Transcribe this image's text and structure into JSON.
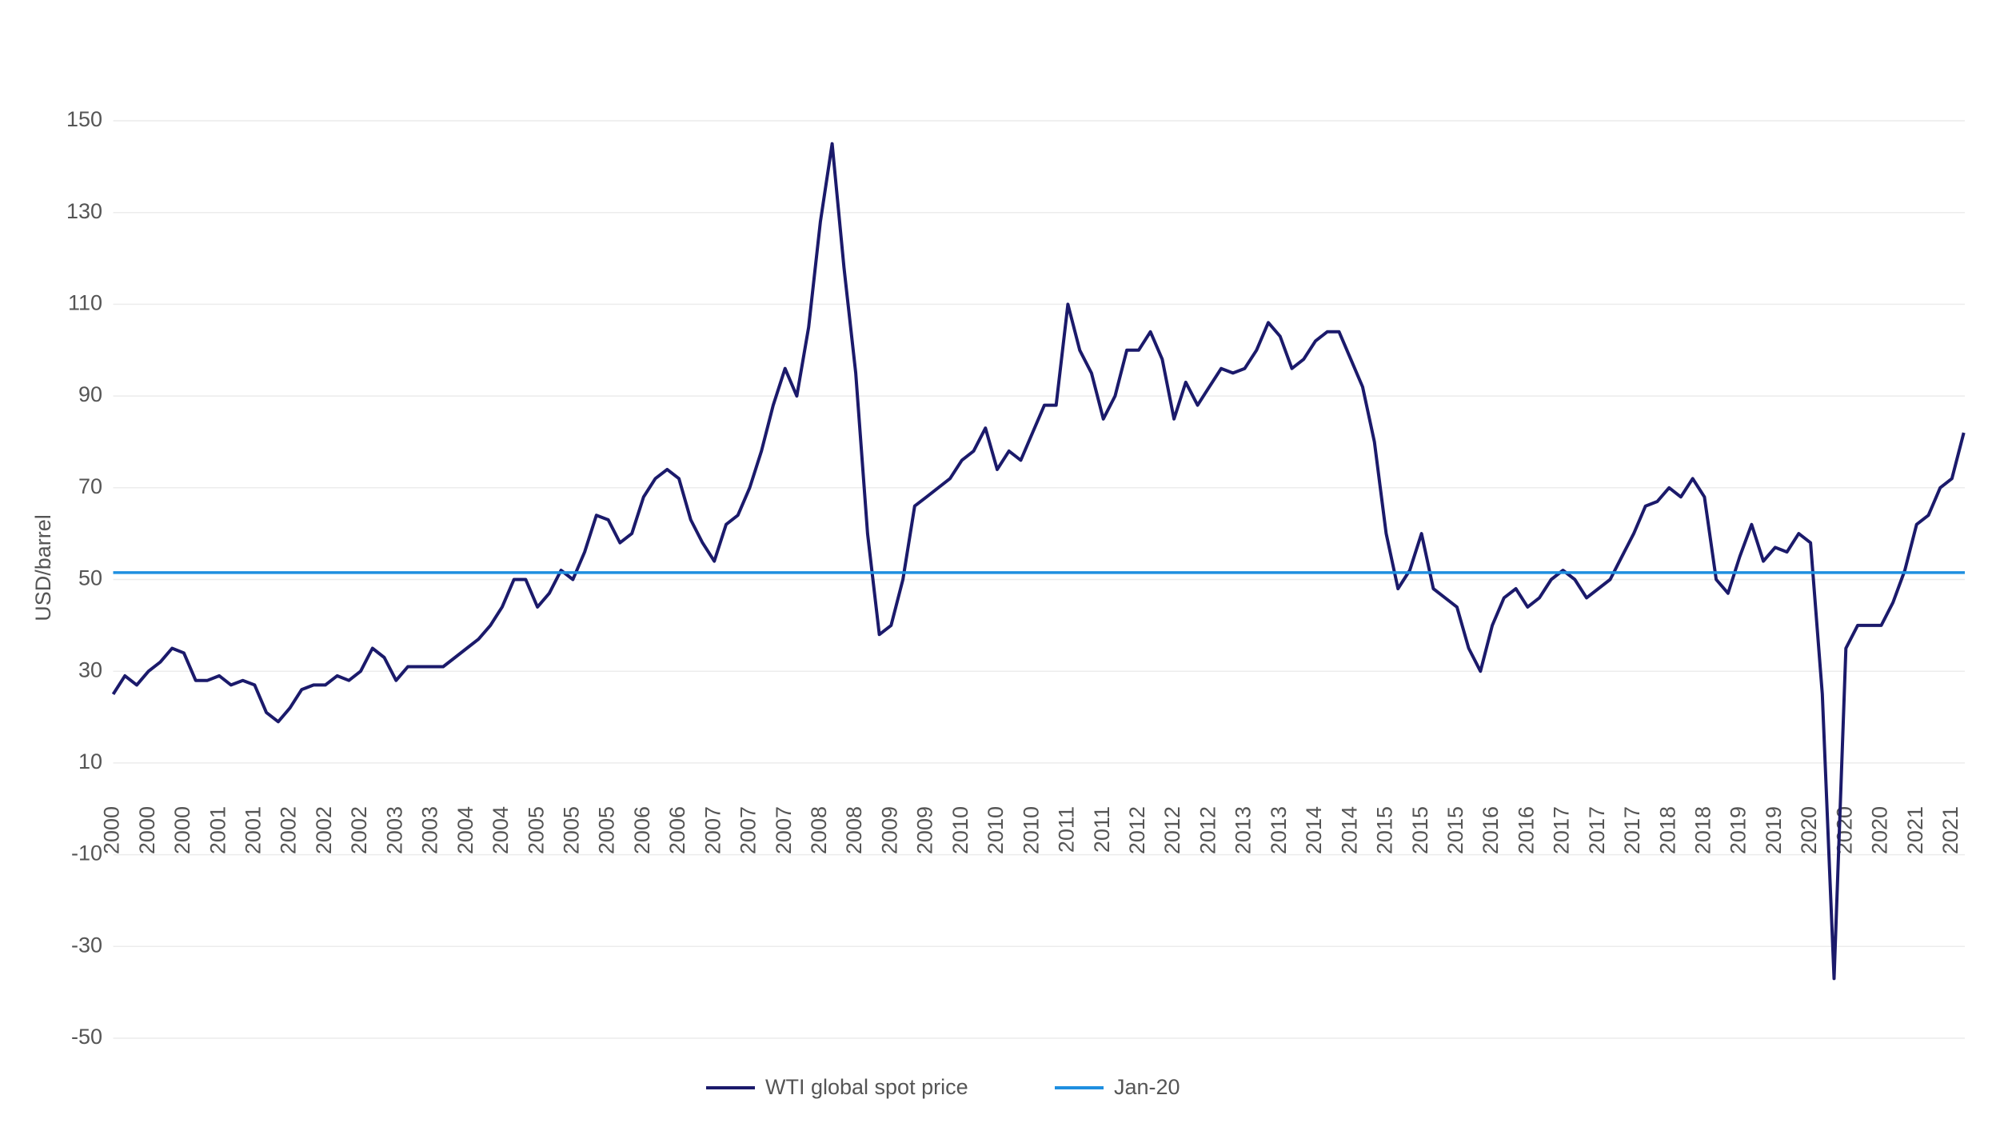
{
  "chart_data": {
    "type": "line",
    "ylabel": "USD/barrel",
    "categories": [
      "2000",
      null,
      null,
      "2000",
      null,
      null,
      "2000",
      null,
      null,
      "2001",
      null,
      null,
      "2001",
      null,
      null,
      "2002",
      null,
      null,
      "2002",
      null,
      null,
      "2002",
      null,
      null,
      "2003",
      null,
      null,
      "2003",
      null,
      null,
      "2004",
      null,
      null,
      "2004",
      null,
      null,
      "2005",
      null,
      null,
      "2005",
      null,
      null,
      "2005",
      null,
      null,
      "2006",
      null,
      null,
      "2006",
      null,
      null,
      "2007",
      null,
      null,
      "2007",
      null,
      null,
      "2007",
      null,
      null,
      "2008",
      null,
      null,
      "2008",
      null,
      null,
      "2009",
      null,
      null,
      "2009",
      null,
      null,
      "2010",
      null,
      null,
      "2010",
      null,
      null,
      "2010",
      null,
      null,
      "2011",
      null,
      null,
      "2011",
      null,
      null,
      "2012",
      null,
      null,
      "2012",
      null,
      null,
      "2012",
      null,
      null,
      "2013",
      null,
      null,
      "2013",
      null,
      null,
      "2014",
      null,
      null,
      "2014",
      null,
      null,
      "2015",
      null,
      null,
      "2015",
      null,
      null,
      "2015",
      null,
      null,
      "2016",
      null,
      null,
      "2016",
      null,
      null,
      "2017",
      null,
      null,
      "2017",
      null,
      null,
      "2017",
      null,
      null,
      "2018",
      null,
      null,
      "2018",
      null,
      null,
      "2019",
      null,
      null,
      "2019",
      null,
      null,
      "2020",
      null,
      null,
      "2020",
      null,
      null,
      "2020",
      null,
      null,
      "2021",
      null,
      null,
      "2021",
      null
    ],
    "series": [
      {
        "name": "WTI global spot price",
        "color": "#1b1a6b",
        "values": [
          25,
          29,
          27,
          30,
          32,
          35,
          34,
          28,
          28,
          29,
          27,
          28,
          27,
          21,
          19,
          22,
          26,
          27,
          27,
          29,
          28,
          30,
          35,
          33,
          28,
          31,
          31,
          31,
          31,
          33,
          35,
          37,
          40,
          44,
          50,
          50,
          44,
          47,
          52,
          50,
          56,
          64,
          63,
          58,
          60,
          68,
          72,
          74,
          72,
          63,
          58,
          54,
          62,
          64,
          70,
          78,
          88,
          96,
          90,
          105,
          128,
          145,
          118,
          95,
          60,
          38,
          40,
          50,
          66,
          68,
          70,
          72,
          76,
          78,
          83,
          74,
          78,
          76,
          82,
          88,
          88,
          110,
          100,
          95,
          85,
          90,
          100,
          100,
          104,
          98,
          85,
          93,
          88,
          92,
          96,
          95,
          96,
          100,
          106,
          103,
          96,
          98,
          102,
          104,
          104,
          98,
          92,
          80,
          60,
          48,
          52,
          60,
          48,
          46,
          44,
          35,
          30,
          40,
          46,
          48,
          44,
          46,
          50,
          52,
          50,
          46,
          48,
          50,
          55,
          60,
          66,
          67,
          70,
          68,
          72,
          68,
          50,
          47,
          55,
          62,
          54,
          57,
          56,
          60,
          58,
          25,
          -37,
          35,
          40,
          40,
          40,
          45,
          52,
          62,
          64,
          70,
          72,
          82
        ]
      },
      {
        "name": "Jan-20",
        "color": "#1f8fe0",
        "value": 51.5
      }
    ],
    "ylim": [
      -50,
      150
    ],
    "yticks": [
      -50,
      -30,
      -10,
      10,
      30,
      50,
      70,
      90,
      110,
      130,
      150
    ],
    "grid": true
  }
}
